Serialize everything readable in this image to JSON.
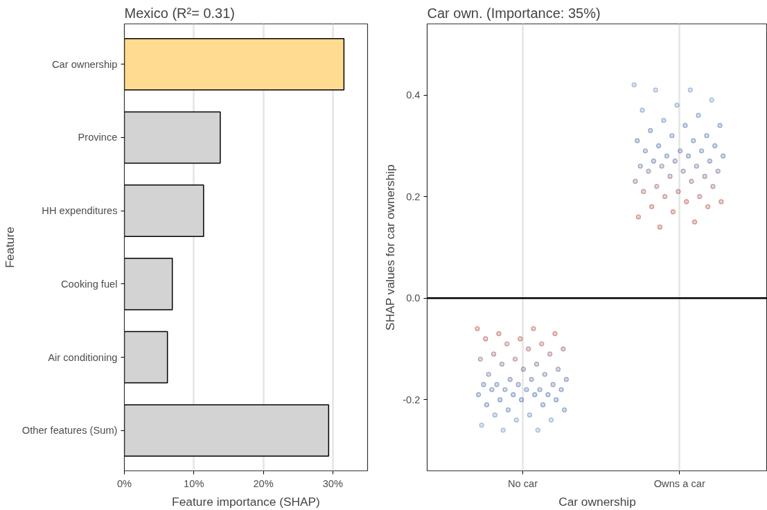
{
  "chart_data": [
    {
      "type": "bar",
      "orientation": "horizontal",
      "title": "Mexico (R²= 0.31)",
      "xlabel": "Feature importance (SHAP)",
      "ylabel": "Feature",
      "categories": [
        "Car ownership",
        "Province",
        "HH expenditures",
        "Cooking fuel",
        "Air conditioning",
        "Other features (Sum)"
      ],
      "values": [
        31.6,
        13.8,
        11.4,
        6.9,
        6.2,
        29.4
      ],
      "colors": [
        "#ffdb92",
        "#d3d3d3",
        "#d3d3d3",
        "#d3d3d3",
        "#d3d3d3",
        "#d3d3d3"
      ],
      "xlim": [
        0,
        35
      ],
      "xticks": [
        {
          "value": 0,
          "label": "0%"
        },
        {
          "value": 10,
          "label": "10%"
        },
        {
          "value": 20,
          "label": "20%"
        },
        {
          "value": 30,
          "label": "30%"
        }
      ],
      "grid": "x"
    },
    {
      "type": "scatter",
      "title": "Car own. (Importance: 35%)",
      "xlabel": "Car ownership",
      "ylabel": "SHAP values for car ownership",
      "categories": [
        "No car",
        "Owns a car"
      ],
      "ylim": [
        -0.34,
        0.54
      ],
      "yticks": [
        {
          "value": 0.4,
          "label": "0.4"
        },
        {
          "value": 0.2,
          "label": "0.2"
        },
        {
          "value": 0,
          "label": "0.0"
        },
        {
          "value": -0.2,
          "label": "-0.2"
        }
      ],
      "grid": "x",
      "marker": "circle",
      "ref_lines": [
        {
          "axis": "y",
          "value": 0,
          "color": "#000000",
          "line_style": "solid"
        }
      ],
      "series": [
        {
          "x": [
            "No car",
            "No car",
            "No car",
            "No car",
            "No car",
            "No car",
            "No car",
            "No car",
            "No car",
            "No car",
            "No car",
            "No car",
            "No car",
            "No car",
            "No car",
            "No car",
            "No car",
            "No car",
            "No car",
            "No car",
            "No car",
            "No car",
            "No car",
            "No car",
            "No car",
            "No car",
            "No car",
            "No car",
            "No car",
            "No car",
            "No car",
            "No car",
            "No car",
            "No car",
            "No car",
            "No car",
            "No car",
            "No car",
            "No car",
            "No car",
            "No car",
            "No car",
            "No car",
            "No car",
            "No car",
            "No car",
            "No car",
            "No car",
            "No car",
            "No car"
          ],
          "values": [
            -0.06,
            -0.06,
            -0.07,
            -0.07,
            -0.08,
            -0.08,
            -0.09,
            -0.09,
            -0.1,
            -0.1,
            -0.11,
            -0.11,
            -0.12,
            -0.12,
            -0.13,
            -0.13,
            -0.14,
            -0.14,
            -0.15,
            -0.15,
            -0.16,
            -0.16,
            -0.16,
            -0.17,
            -0.17,
            -0.17,
            -0.17,
            -0.18,
            -0.18,
            -0.18,
            -0.18,
            -0.18,
            -0.19,
            -0.19,
            -0.19,
            -0.19,
            -0.2,
            -0.2,
            -0.2,
            -0.21,
            -0.21,
            -0.22,
            -0.22,
            -0.23,
            -0.23,
            -0.24,
            -0.24,
            -0.25,
            -0.26,
            -0.26
          ],
          "colors": [
            "#b5453a",
            "#b5453a",
            "#b5453a",
            "#b5453a",
            "#b0473f",
            "#b0473f",
            "#a94a4c",
            "#a94a4c",
            "#9e4e5a",
            "#9e4e5a",
            "#915268",
            "#915268",
            "#845674",
            "#845674",
            "#765a80",
            "#765a80",
            "#685e8c",
            "#685e8c",
            "#5a6296",
            "#5a6296",
            "#4e659e",
            "#4e659e",
            "#4e659e",
            "#4867a3",
            "#4867a3",
            "#4867a3",
            "#4867a3",
            "#4268a8",
            "#4268a8",
            "#4268a8",
            "#4268a8",
            "#4268a8",
            "#3f68aa",
            "#3f68aa",
            "#3f68aa",
            "#3f68aa",
            "#3f68aa",
            "#3f68aa",
            "#3f68aa",
            "#3f68aa",
            "#3f68aa",
            "#4a74b0",
            "#4a74b0",
            "#5a80b8",
            "#5a80b8",
            "#6a8cc0",
            "#6a8cc0",
            "#6a8cc0",
            "#6a8cc0",
            "#6a8cc0"
          ]
        },
        {
          "x": [
            "Owns a car",
            "Owns a car",
            "Owns a car",
            "Owns a car",
            "Owns a car",
            "Owns a car",
            "Owns a car",
            "Owns a car",
            "Owns a car",
            "Owns a car",
            "Owns a car",
            "Owns a car",
            "Owns a car",
            "Owns a car",
            "Owns a car",
            "Owns a car",
            "Owns a car",
            "Owns a car",
            "Owns a car",
            "Owns a car",
            "Owns a car",
            "Owns a car",
            "Owns a car",
            "Owns a car",
            "Owns a car",
            "Owns a car",
            "Owns a car",
            "Owns a car",
            "Owns a car",
            "Owns a car",
            "Owns a car",
            "Owns a car",
            "Owns a car",
            "Owns a car",
            "Owns a car",
            "Owns a car",
            "Owns a car",
            "Owns a car",
            "Owns a car",
            "Owns a car",
            "Owns a car",
            "Owns a car",
            "Owns a car",
            "Owns a car",
            "Owns a car",
            "Owns a car",
            "Owns a car",
            "Owns a car",
            "Owns a car",
            "Owns a car"
          ],
          "values": [
            0.42,
            0.41,
            0.41,
            0.39,
            0.38,
            0.37,
            0.36,
            0.35,
            0.34,
            0.34,
            0.33,
            0.32,
            0.32,
            0.31,
            0.31,
            0.3,
            0.3,
            0.29,
            0.29,
            0.29,
            0.28,
            0.28,
            0.28,
            0.27,
            0.27,
            0.27,
            0.26,
            0.26,
            0.26,
            0.25,
            0.25,
            0.25,
            0.24,
            0.24,
            0.23,
            0.23,
            0.22,
            0.22,
            0.21,
            0.21,
            0.2,
            0.2,
            0.19,
            0.19,
            0.18,
            0.18,
            0.17,
            0.16,
            0.15,
            0.14
          ],
          "colors": [
            "#6a8cc0",
            "#6a8cc0",
            "#6a8cc0",
            "#6a8cc0",
            "#5a80b8",
            "#5a80b8",
            "#4a74b0",
            "#4a74b0",
            "#4268a8",
            "#4268a8",
            "#3f68aa",
            "#3f68aa",
            "#3f68aa",
            "#3f68aa",
            "#3f68aa",
            "#3f68aa",
            "#3f68aa",
            "#4268a8",
            "#4268a8",
            "#4268a8",
            "#4867a3",
            "#4867a3",
            "#4867a3",
            "#4e659e",
            "#4e659e",
            "#4e659e",
            "#5a6296",
            "#5a6296",
            "#5a6296",
            "#685e8c",
            "#685e8c",
            "#685e8c",
            "#765a80",
            "#765a80",
            "#845674",
            "#845674",
            "#915268",
            "#915268",
            "#9e4e5a",
            "#9e4e5a",
            "#a94a4c",
            "#a94a4c",
            "#b0473f",
            "#b0473f",
            "#b5453a",
            "#b5453a",
            "#b5453a",
            "#b5453a",
            "#b5453a",
            "#b5453a"
          ]
        }
      ]
    }
  ]
}
